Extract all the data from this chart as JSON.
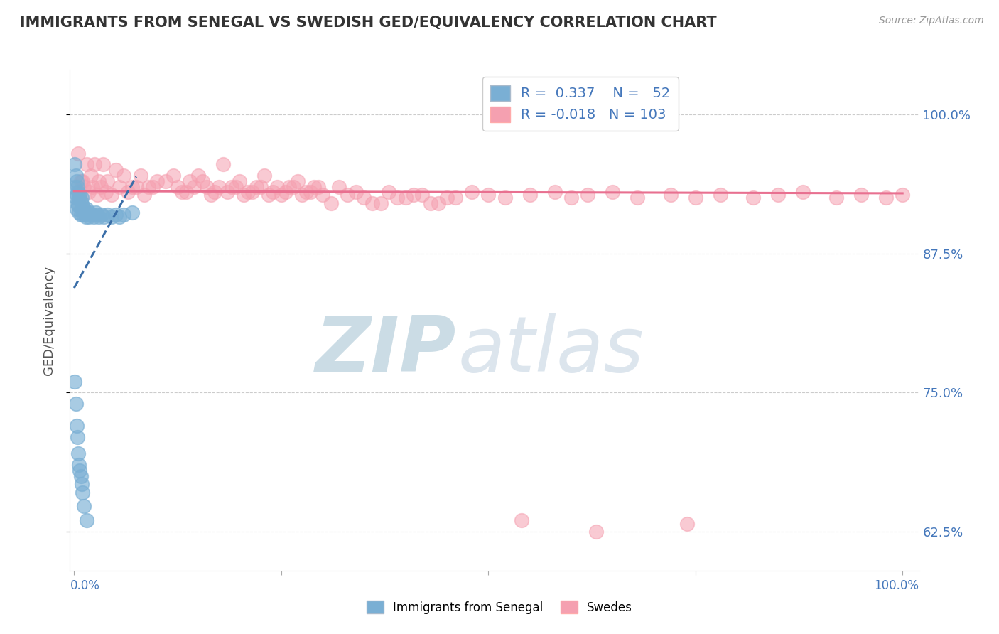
{
  "title": "IMMIGRANTS FROM SENEGAL VS SWEDISH GED/EQUIVALENCY CORRELATION CHART",
  "source_text": "Source: ZipAtlas.com",
  "ylabel": "GED/Equivalency",
  "yticks": [
    0.625,
    0.75,
    0.875,
    1.0
  ],
  "ytick_labels": [
    "62.5%",
    "75.0%",
    "87.5%",
    "100.0%"
  ],
  "legend_label1": "Immigrants from Senegal",
  "legend_label2": "Swedes",
  "R1": 0.337,
  "N1": 52,
  "R2": -0.018,
  "N2": 103,
  "blue_color": "#7aafd4",
  "pink_color": "#f5a0b0",
  "trend_blue": "#3a6ea8",
  "trend_pink": "#e87090",
  "label_color": "#4477bb",
  "title_color": "#333333",
  "source_color": "#999999",
  "watermark_zip_color": "#99bbcc",
  "watermark_atlas_color": "#bbccdd",
  "blue_x": [
    0.001,
    0.001,
    0.002,
    0.002,
    0.003,
    0.003,
    0.003,
    0.004,
    0.004,
    0.005,
    0.005,
    0.006,
    0.006,
    0.007,
    0.008,
    0.008,
    0.009,
    0.01,
    0.011,
    0.012,
    0.013,
    0.014,
    0.015,
    0.016,
    0.018,
    0.019,
    0.02,
    0.022,
    0.024,
    0.026,
    0.028,
    0.03,
    0.033,
    0.036,
    0.04,
    0.045,
    0.05,
    0.055,
    0.06,
    0.07,
    0.001,
    0.002,
    0.003,
    0.004,
    0.005,
    0.006,
    0.007,
    0.008,
    0.009,
    0.01,
    0.012,
    0.015
  ],
  "blue_y": [
    0.955,
    0.935,
    0.945,
    0.925,
    0.94,
    0.928,
    0.915,
    0.935,
    0.92,
    0.93,
    0.918,
    0.925,
    0.912,
    0.928,
    0.922,
    0.91,
    0.925,
    0.918,
    0.91,
    0.915,
    0.912,
    0.908,
    0.915,
    0.91,
    0.908,
    0.912,
    0.91,
    0.91,
    0.908,
    0.912,
    0.91,
    0.908,
    0.91,
    0.908,
    0.91,
    0.908,
    0.91,
    0.908,
    0.91,
    0.912,
    0.76,
    0.74,
    0.72,
    0.71,
    0.695,
    0.685,
    0.68,
    0.675,
    0.668,
    0.66,
    0.648,
    0.635
  ],
  "pink_x": [
    0.005,
    0.01,
    0.015,
    0.02,
    0.025,
    0.03,
    0.035,
    0.04,
    0.05,
    0.06,
    0.07,
    0.08,
    0.09,
    0.1,
    0.12,
    0.13,
    0.14,
    0.15,
    0.16,
    0.17,
    0.18,
    0.19,
    0.2,
    0.21,
    0.22,
    0.23,
    0.24,
    0.25,
    0.26,
    0.27,
    0.28,
    0.29,
    0.3,
    0.32,
    0.34,
    0.36,
    0.38,
    0.4,
    0.42,
    0.44,
    0.46,
    0.48,
    0.5,
    0.52,
    0.55,
    0.58,
    0.6,
    0.62,
    0.65,
    0.68,
    0.72,
    0.75,
    0.78,
    0.82,
    0.85,
    0.88,
    0.92,
    0.95,
    0.98,
    1.0,
    0.008,
    0.012,
    0.018,
    0.022,
    0.028,
    0.032,
    0.038,
    0.045,
    0.055,
    0.065,
    0.075,
    0.085,
    0.095,
    0.11,
    0.125,
    0.135,
    0.145,
    0.155,
    0.165,
    0.175,
    0.185,
    0.195,
    0.205,
    0.215,
    0.225,
    0.235,
    0.245,
    0.255,
    0.265,
    0.275,
    0.285,
    0.295,
    0.31,
    0.33,
    0.35,
    0.37,
    0.39,
    0.41,
    0.43,
    0.45,
    0.54,
    0.63,
    0.74
  ],
  "pink_y": [
    0.965,
    0.94,
    0.955,
    0.945,
    0.955,
    0.94,
    0.955,
    0.94,
    0.95,
    0.945,
    0.935,
    0.945,
    0.935,
    0.94,
    0.945,
    0.93,
    0.94,
    0.945,
    0.935,
    0.93,
    0.955,
    0.935,
    0.94,
    0.93,
    0.935,
    0.945,
    0.93,
    0.928,
    0.935,
    0.94,
    0.93,
    0.935,
    0.928,
    0.935,
    0.93,
    0.92,
    0.93,
    0.925,
    0.928,
    0.92,
    0.925,
    0.93,
    0.928,
    0.925,
    0.928,
    0.93,
    0.925,
    0.928,
    0.93,
    0.925,
    0.928,
    0.925,
    0.928,
    0.925,
    0.928,
    0.93,
    0.925,
    0.928,
    0.925,
    0.928,
    0.94,
    0.935,
    0.93,
    0.935,
    0.928,
    0.935,
    0.93,
    0.928,
    0.935,
    0.93,
    0.935,
    0.928,
    0.935,
    0.94,
    0.935,
    0.93,
    0.935,
    0.94,
    0.928,
    0.935,
    0.93,
    0.935,
    0.928,
    0.93,
    0.935,
    0.928,
    0.935,
    0.93,
    0.935,
    0.928,
    0.93,
    0.935,
    0.92,
    0.928,
    0.925,
    0.92,
    0.925,
    0.928,
    0.92,
    0.925,
    0.635,
    0.625,
    0.632
  ]
}
